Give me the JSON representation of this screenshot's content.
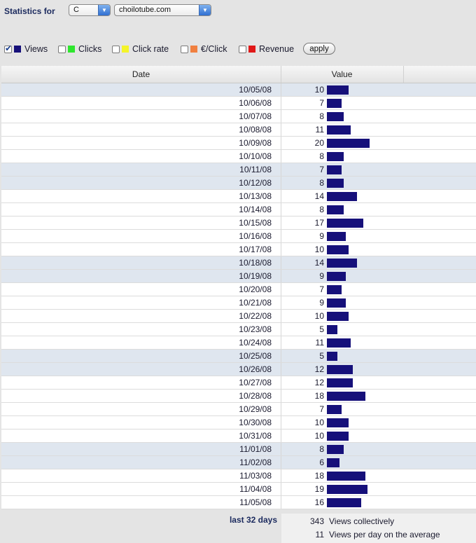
{
  "header": {
    "stats_label": "Statistics for",
    "select_c": "C",
    "select_site": "choilotube.com"
  },
  "legend": [
    {
      "label": "Views",
      "checked": true,
      "color": "#16107a"
    },
    {
      "label": "Clicks",
      "checked": false,
      "color": "#2ee62e"
    },
    {
      "label": "Click rate",
      "checked": false,
      "color": "#f4f42a"
    },
    {
      "label": "€/Click",
      "checked": false,
      "color": "#f08040"
    },
    {
      "label": "Revenue",
      "checked": false,
      "color": "#e01818"
    }
  ],
  "apply_label": "apply",
  "table": {
    "col_date": "Date",
    "col_value": "Value",
    "bar_color": "#16107a",
    "rows": [
      {
        "date": "10/05/08",
        "value": 10,
        "weekend": true
      },
      {
        "date": "10/06/08",
        "value": 7,
        "weekend": false
      },
      {
        "date": "10/07/08",
        "value": 8,
        "weekend": false
      },
      {
        "date": "10/08/08",
        "value": 11,
        "weekend": false
      },
      {
        "date": "10/09/08",
        "value": 20,
        "weekend": false
      },
      {
        "date": "10/10/08",
        "value": 8,
        "weekend": false
      },
      {
        "date": "10/11/08",
        "value": 7,
        "weekend": true
      },
      {
        "date": "10/12/08",
        "value": 8,
        "weekend": true
      },
      {
        "date": "10/13/08",
        "value": 14,
        "weekend": false
      },
      {
        "date": "10/14/08",
        "value": 8,
        "weekend": false
      },
      {
        "date": "10/15/08",
        "value": 17,
        "weekend": false
      },
      {
        "date": "10/16/08",
        "value": 9,
        "weekend": false
      },
      {
        "date": "10/17/08",
        "value": 10,
        "weekend": false
      },
      {
        "date": "10/18/08",
        "value": 14,
        "weekend": true
      },
      {
        "date": "10/19/08",
        "value": 9,
        "weekend": true
      },
      {
        "date": "10/20/08",
        "value": 7,
        "weekend": false
      },
      {
        "date": "10/21/08",
        "value": 9,
        "weekend": false
      },
      {
        "date": "10/22/08",
        "value": 10,
        "weekend": false
      },
      {
        "date": "10/23/08",
        "value": 5,
        "weekend": false
      },
      {
        "date": "10/24/08",
        "value": 11,
        "weekend": false
      },
      {
        "date": "10/25/08",
        "value": 5,
        "weekend": true
      },
      {
        "date": "10/26/08",
        "value": 12,
        "weekend": true
      },
      {
        "date": "10/27/08",
        "value": 12,
        "weekend": false
      },
      {
        "date": "10/28/08",
        "value": 18,
        "weekend": false
      },
      {
        "date": "10/29/08",
        "value": 7,
        "weekend": false
      },
      {
        "date": "10/30/08",
        "value": 10,
        "weekend": false
      },
      {
        "date": "10/31/08",
        "value": 10,
        "weekend": false
      },
      {
        "date": "11/01/08",
        "value": 8,
        "weekend": true
      },
      {
        "date": "11/02/08",
        "value": 6,
        "weekend": true
      },
      {
        "date": "11/03/08",
        "value": 18,
        "weekend": false
      },
      {
        "date": "11/04/08",
        "value": 19,
        "weekend": false
      },
      {
        "date": "11/05/08",
        "value": 16,
        "weekend": false
      }
    ]
  },
  "footer": {
    "period": "last 32 days",
    "total_num": "343",
    "total_text": "Views collectively",
    "avg_num": "11",
    "avg_text": "Views per day on the average"
  }
}
